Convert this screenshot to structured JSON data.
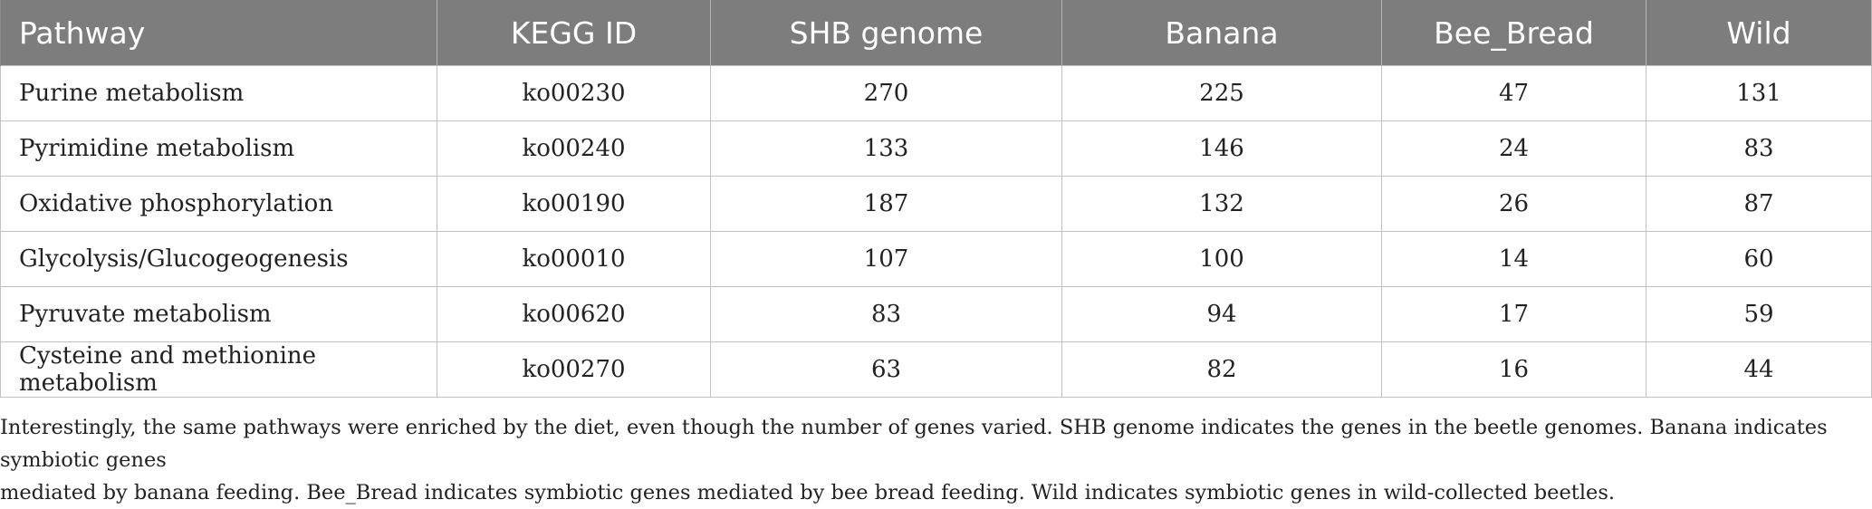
{
  "table": {
    "headers": [
      "Pathway",
      "KEGG ID",
      "SHB genome",
      "Banana",
      "Bee_Bread",
      "Wild"
    ],
    "rows": [
      [
        "Purine metabolism",
        "ko00230",
        "270",
        "225",
        "47",
        "131"
      ],
      [
        "Pyrimidine metabolism",
        "ko00240",
        "133",
        "146",
        "24",
        "83"
      ],
      [
        "Oxidative phosphorylation",
        "ko00190",
        "187",
        "132",
        "26",
        "87"
      ],
      [
        "Glycolysis/Glucogeogenesis",
        "ko00010",
        "107",
        "100",
        "14",
        "60"
      ],
      [
        "Pyruvate metabolism",
        "ko00620",
        "83",
        "94",
        "17",
        "59"
      ],
      [
        "Cysteine and methionine metabolism",
        "ko00270",
        "63",
        "82",
        "16",
        "44"
      ]
    ]
  },
  "footnote": {
    "line1": "Interestingly, the same pathways were enriched by the diet, even though the number of genes varied. SHB genome indicates the genes in the beetle genomes. Banana indicates symbiotic genes",
    "line2": "mediated by banana feeding. Bee_Bread indicates symbiotic genes mediated by bee bread feeding. Wild indicates symbiotic genes in wild-collected beetles."
  },
  "colors": {
    "header_bg": "#7d7d7d",
    "header_text": "#ffffff",
    "grid": "#c2c2c2",
    "body_text": "#222222"
  }
}
